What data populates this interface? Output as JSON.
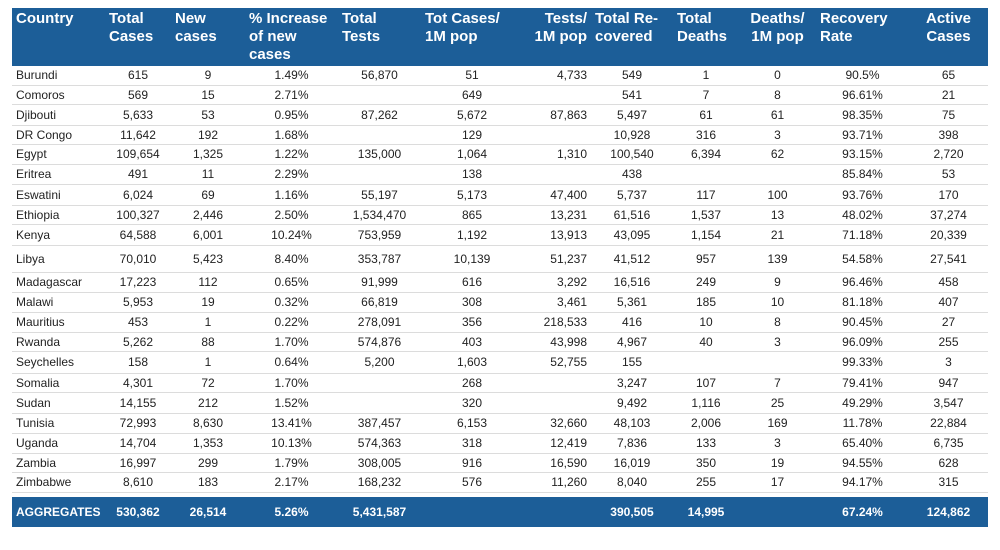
{
  "columns": [
    "Country",
    "Total\nCases",
    "New\ncases",
    "% Increase\nof new\ncases",
    "Total\nTests",
    "Tot Cases/\n1M pop",
    "Tests/\n1M pop",
    "Total Re-\ncovered",
    "Total\nDeaths",
    "Deaths/\n1M pop",
    "Recovery\nRate",
    "Active\nCases"
  ],
  "rows": [
    [
      "Burundi",
      "615",
      "9",
      "1.49%",
      "56,870",
      "51",
      "4,733",
      "549",
      "1",
      "0",
      "90.5%",
      "65"
    ],
    [
      "Comoros",
      "569",
      "15",
      "2.71%",
      "",
      "649",
      "",
      "541",
      "7",
      "8",
      "96.61%",
      "21"
    ],
    [
      "Djibouti",
      "5,633",
      "53",
      "0.95%",
      "87,262",
      "5,672",
      "87,863",
      "5,497",
      "61",
      "61",
      "98.35%",
      "75"
    ],
    [
      "DR Congo",
      "11,642",
      "192",
      "1.68%",
      "",
      "129",
      "",
      "10,928",
      "316",
      "3",
      "93.71%",
      "398"
    ],
    [
      "Egypt",
      "109,654",
      "1,325",
      "1.22%",
      "135,000",
      "1,064",
      "1,310",
      "100,540",
      "6,394",
      "62",
      "93.15%",
      "2,720"
    ],
    [
      "Eritrea",
      "491",
      "11",
      "2.29%",
      "",
      "138",
      "",
      "438",
      "",
      "",
      "85.84%",
      "53"
    ],
    [
      "Eswatini",
      "6,024",
      "69",
      "1.16%",
      "55,197",
      "5,173",
      "47,400",
      "5,737",
      "117",
      "100",
      "93.76%",
      "170"
    ],
    [
      "Ethiopia",
      "100,327",
      "2,446",
      "2.50%",
      "1,534,470",
      "865",
      "13,231",
      "61,516",
      "1,537",
      "13",
      "48.02%",
      "37,274"
    ],
    [
      "Kenya",
      "64,588",
      "6,001",
      "10.24%",
      "753,959",
      "1,192",
      "13,913",
      "43,095",
      "1,154",
      "21",
      "71.18%",
      "20,339"
    ],
    [
      "Libya",
      "70,010",
      "5,423",
      "8.40%",
      "353,787",
      "10,139",
      "51,237",
      "41,512",
      "957",
      "139",
      "54.58%",
      "27,541"
    ],
    [
      "Madagascar",
      "17,223",
      "112",
      "0.65%",
      "91,999",
      "616",
      "3,292",
      "16,516",
      "249",
      "9",
      "96.46%",
      "458"
    ],
    [
      "Malawi",
      "5,953",
      "19",
      "0.32%",
      "66,819",
      "308",
      "3,461",
      "5,361",
      "185",
      "10",
      "81.18%",
      "407"
    ],
    [
      "Mauritius",
      "453",
      "1",
      "0.22%",
      "278,091",
      "356",
      "218,533",
      "416",
      "10",
      "8",
      "90.45%",
      "27"
    ],
    [
      "Rwanda",
      "5,262",
      "88",
      "1.70%",
      "574,876",
      "403",
      "43,998",
      "4,967",
      "40",
      "3",
      "96.09%",
      "255"
    ],
    [
      "Seychelles",
      "158",
      "1",
      "0.64%",
      "5,200",
      "1,603",
      "52,755",
      "155",
      "",
      "",
      "99.33%",
      "3"
    ],
    [
      "Somalia",
      "4,301",
      "72",
      "1.70%",
      "",
      "268",
      "",
      "3,247",
      "107",
      "7",
      "79.41%",
      "947"
    ],
    [
      "Sudan",
      "14,155",
      "212",
      "1.52%",
      "",
      "320",
      "",
      "9,492",
      "1,116",
      "25",
      "49.29%",
      "3,547"
    ],
    [
      "Tunisia",
      "72,993",
      "8,630",
      "13.41%",
      "387,457",
      "6,153",
      "32,660",
      "48,103",
      "2,006",
      "169",
      "11.78%",
      "22,884"
    ],
    [
      "Uganda",
      "14,704",
      "1,353",
      "10.13%",
      "574,363",
      "318",
      "12,419",
      "7,836",
      "133",
      "3",
      "65.40%",
      "6,735"
    ],
    [
      "Zambia",
      "16,997",
      "299",
      "1.79%",
      "308,005",
      "916",
      "16,590",
      "16,019",
      "350",
      "19",
      "94.55%",
      "628"
    ],
    [
      "Zimbabwe",
      "8,610",
      "183",
      "2.17%",
      "168,232",
      "576",
      "11,260",
      "8,040",
      "255",
      "17",
      "94.17%",
      "315"
    ]
  ],
  "aggregates": [
    "AGGREGATES",
    "530,362",
    "26,514",
    "5.26%",
    "5,431,587",
    "",
    "",
    "390,505",
    "14,995",
    "",
    "67.24%",
    "124,862"
  ],
  "colors": {
    "header_bg": "#1c5e98",
    "header_text": "#ffffff",
    "row_border": "#dcdcdc"
  }
}
